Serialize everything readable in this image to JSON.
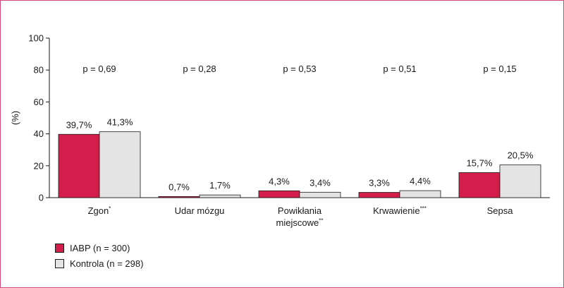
{
  "chart_data": {
    "type": "bar",
    "ylabel": "(%)",
    "ylim": [
      0,
      100
    ],
    "yticks": [
      "0",
      "20",
      "40",
      "60",
      "80",
      "100"
    ],
    "categories": [
      {
        "label": "Zgon",
        "sup": "*"
      },
      {
        "label": "Udar mózgu",
        "sup": ""
      },
      {
        "label": "Powikłania",
        "label2": "miejscowe",
        "sup": "**"
      },
      {
        "label": "Krwawienie",
        "sup": "***"
      },
      {
        "label": "Sepsa",
        "sup": ""
      }
    ],
    "series": [
      {
        "name": "IABP (n = 300)",
        "color": "#d41d4b",
        "values": [
          39.7,
          0.7,
          4.3,
          3.3,
          15.7
        ],
        "labels": [
          "39,7%",
          "0,7%",
          "4,3%",
          "3,3%",
          "15,7%"
        ]
      },
      {
        "name": "Kontrola (n = 298)",
        "color": "#e4e4e4",
        "values": [
          41.3,
          1.7,
          3.4,
          4.4,
          20.5
        ],
        "labels": [
          "41,3%",
          "1,7%",
          "3,4%",
          "4,4%",
          "20,5%"
        ]
      }
    ],
    "p_values": [
      "p = 0,69",
      "p = 0,28",
      "p = 0,53",
      "p = 0,51",
      "p = 0,15"
    ],
    "grid": false,
    "legend_position": "bottom-left"
  }
}
